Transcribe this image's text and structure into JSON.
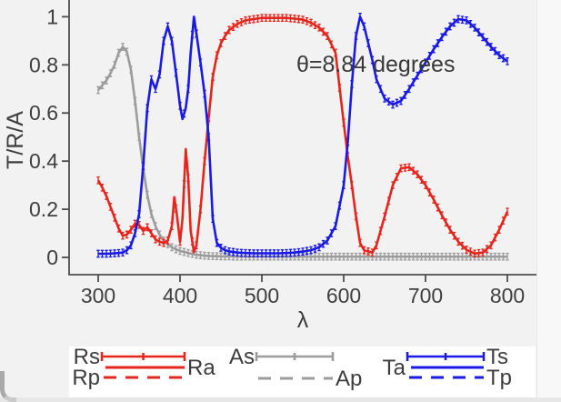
{
  "figure": {
    "annotation": "θ=8.84 degrees",
    "background": "#f2f2f2",
    "legend_background": "#ffffff"
  },
  "axes": {
    "x_tick_labels": [
      "300",
      "400",
      "500",
      "600",
      "700",
      "800"
    ],
    "x_tick_values": [
      300,
      400,
      500,
      600,
      700,
      800
    ],
    "y_tick_labels": [
      "0",
      "0.2",
      "0.4",
      "0.6",
      "0.8",
      "1"
    ],
    "y_tick_values": [
      0,
      0.2,
      0.4,
      0.6,
      0.8,
      1
    ]
  },
  "chart_data": {
    "type": "line",
    "title": "",
    "xlabel": "λ",
    "ylabel": "T/R/A",
    "xlim": [
      300,
      800
    ],
    "ylim": [
      0,
      1
    ],
    "grid": false,
    "annotation": "θ=8.84 degrees",
    "error_bar": 0.014,
    "x": [
      300,
      305,
      310,
      315,
      320,
      325,
      330,
      335,
      340,
      345,
      350,
      355,
      360,
      365,
      370,
      375,
      380,
      385,
      390,
      393,
      396,
      400,
      403,
      407,
      410,
      413,
      417,
      420,
      425,
      430,
      435,
      440,
      445,
      450,
      455,
      460,
      470,
      480,
      490,
      500,
      510,
      520,
      530,
      540,
      550,
      560,
      570,
      580,
      590,
      600,
      605,
      610,
      615,
      620,
      625,
      630,
      635,
      640,
      650,
      660,
      670,
      680,
      690,
      700,
      710,
      720,
      730,
      740,
      750,
      760,
      770,
      780,
      790,
      800
    ],
    "series": [
      {
        "name": "As",
        "color": "#9c9c9c",
        "style": "errorbar",
        "values": [
          0.695,
          0.715,
          0.735,
          0.765,
          0.8,
          0.85,
          0.875,
          0.855,
          0.78,
          0.65,
          0.5,
          0.37,
          0.26,
          0.18,
          0.13,
          0.095,
          0.07,
          0.055,
          0.042,
          0.037,
          0.032,
          0.027,
          0.024,
          0.021,
          0.018,
          0.016,
          0.013,
          0.011,
          0.009,
          0.007,
          0.006,
          0.005,
          0.005,
          0.004,
          0.004,
          0.004,
          0.003,
          0.003,
          0.003,
          0.003,
          0.003,
          0.003,
          0.003,
          0.003,
          0.003,
          0.003,
          0.003,
          0.003,
          0.003,
          0.003,
          0.003,
          0.003,
          0.003,
          0.003,
          0.003,
          0.003,
          0.003,
          0.003,
          0.003,
          0.003,
          0.003,
          0.003,
          0.003,
          0.003,
          0.003,
          0.003,
          0.003,
          0.003,
          0.003,
          0.003,
          0.003,
          0.003,
          0.003,
          0.003
        ]
      },
      {
        "name": "Rs",
        "color": "#e5261d",
        "style": "errorbar",
        "values": [
          0.32,
          0.29,
          0.255,
          0.21,
          0.165,
          0.12,
          0.09,
          0.095,
          0.115,
          0.14,
          0.135,
          0.11,
          0.125,
          0.1,
          0.075,
          0.065,
          0.06,
          0.07,
          0.13,
          0.25,
          0.18,
          0.065,
          0.16,
          0.45,
          0.33,
          0.11,
          0.022,
          0.05,
          0.2,
          0.4,
          0.58,
          0.75,
          0.84,
          0.89,
          0.92,
          0.945,
          0.97,
          0.985,
          0.99,
          0.995,
          0.995,
          0.995,
          0.995,
          0.992,
          0.988,
          0.975,
          0.955,
          0.92,
          0.85,
          0.56,
          0.42,
          0.3,
          0.17,
          0.06,
          0.03,
          0.025,
          0.02,
          0.05,
          0.17,
          0.3,
          0.37,
          0.375,
          0.345,
          0.3,
          0.24,
          0.175,
          0.115,
          0.065,
          0.032,
          0.016,
          0.02,
          0.05,
          0.115,
          0.19
        ]
      },
      {
        "name": "Ts",
        "color": "#1a1ae6",
        "style": "errorbar",
        "values": [
          0.015,
          0.015,
          0.015,
          0.016,
          0.017,
          0.018,
          0.02,
          0.03,
          0.05,
          0.1,
          0.18,
          0.38,
          0.62,
          0.74,
          0.7,
          0.76,
          0.9,
          0.96,
          0.9,
          0.82,
          0.74,
          0.63,
          0.575,
          0.62,
          0.7,
          0.85,
          1.0,
          0.93,
          0.81,
          0.68,
          0.5,
          0.16,
          0.06,
          0.04,
          0.03,
          0.025,
          0.02,
          0.018,
          0.017,
          0.017,
          0.017,
          0.017,
          0.018,
          0.02,
          0.024,
          0.03,
          0.042,
          0.07,
          0.13,
          0.3,
          0.48,
          0.72,
          0.92,
          1.0,
          0.96,
          0.89,
          0.82,
          0.74,
          0.66,
          0.635,
          0.65,
          0.7,
          0.755,
          0.81,
          0.865,
          0.915,
          0.96,
          0.99,
          0.985,
          0.955,
          0.915,
          0.875,
          0.84,
          0.815
        ]
      }
    ],
    "legend": {
      "groups": [
        {
          "color": "#e5261d",
          "rows": [
            {
              "left": "Rs",
              "style": "errorbar",
              "right": ""
            },
            {
              "left": "",
              "style": "solid",
              "right": "Ra"
            },
            {
              "left": "Rp",
              "style": "dashed",
              "right": ""
            }
          ]
        },
        {
          "color": "#9c9c9c",
          "rows": [
            {
              "left": "As",
              "style": "errorbar",
              "right": ""
            },
            {
              "left": "",
              "style": "dashed",
              "right": "Ap"
            }
          ]
        },
        {
          "color": "#1a1ae6",
          "rows": [
            {
              "left": "",
              "style": "errorbar",
              "right": "Ts"
            },
            {
              "left": "Ta",
              "style": "solid",
              "right": ""
            },
            {
              "left": "",
              "style": "dashed",
              "right": "Tp"
            }
          ]
        }
      ]
    }
  }
}
